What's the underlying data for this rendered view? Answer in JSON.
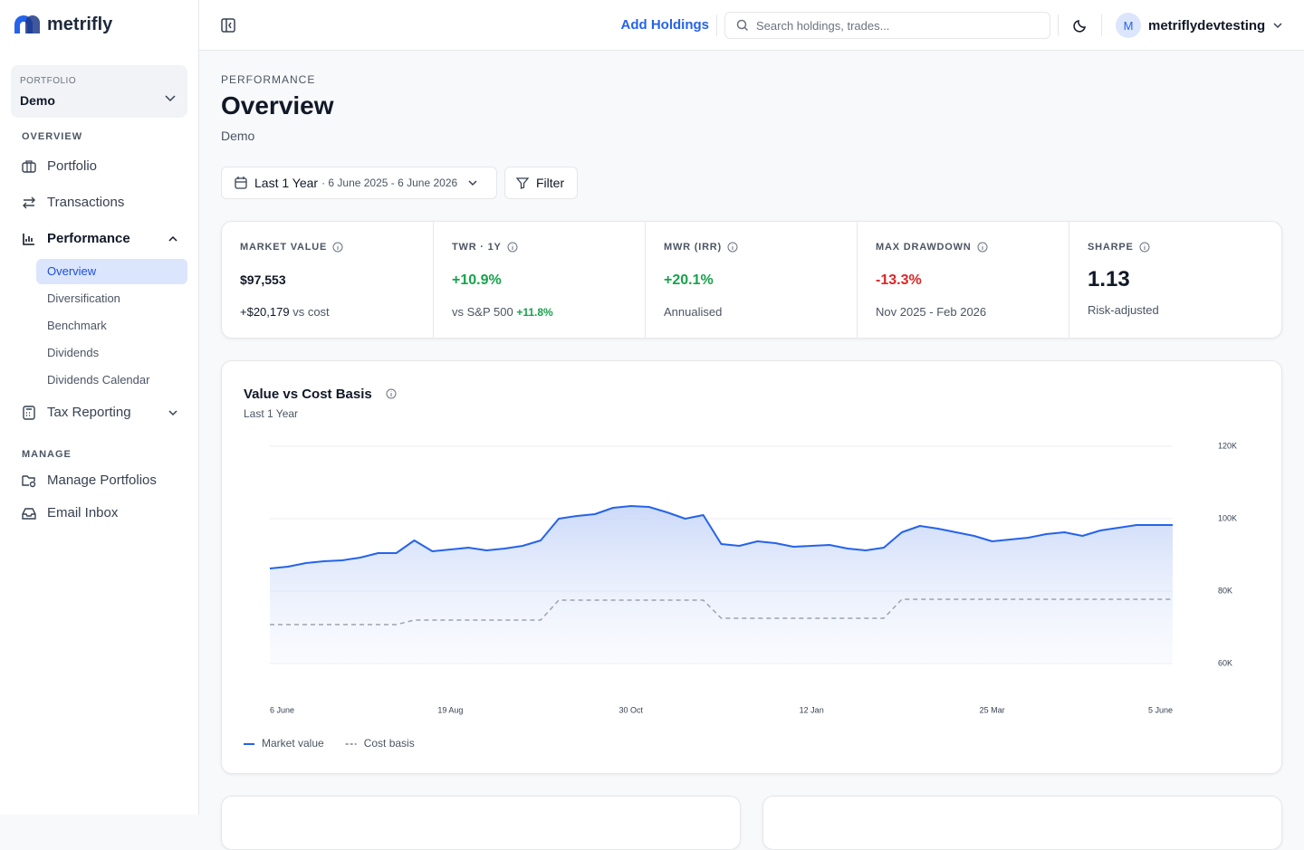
{
  "app": {
    "brand": "metrifly"
  },
  "sidebar": {
    "portfolio_label": "PORTFOLIO",
    "portfolio": "Demo",
    "overview_heading": "OVERVIEW",
    "items": [
      "Portfolio",
      "Transactions",
      "Performance",
      "Tax Reporting"
    ],
    "performance_children": [
      "Overview",
      "Diversification",
      "Benchmark",
      "Dividends",
      "Dividends Calendar"
    ],
    "manage_heading": "MANAGE",
    "manage_items": [
      "Manage Portfolios",
      "Email Inbox"
    ]
  },
  "topbar": {
    "add": "Add Holdings",
    "search": "Search holdings, trades...",
    "avatar": "M",
    "user": "metriflydevtesting"
  },
  "header": {
    "eyebrow": "PERFORMANCE",
    "title": "Overview",
    "subtitle": "Demo"
  },
  "filters": {
    "range": "Last 1 Year",
    "dates": "· 6 June 2025 - 6 June 2026",
    "filter": "Filter"
  },
  "kpis": [
    {
      "label": "MARKET VALUE",
      "value": "$97,553",
      "highlight": "+$20,179",
      "note": "vs cost"
    },
    {
      "label": "TWR · 1Y",
      "value": "+10.9%",
      "note": "vs S&P 500",
      "highlight": "+11.8%"
    },
    {
      "label": "MWR (IRR)",
      "value": "+20.1%",
      "note": "Annualised"
    },
    {
      "label": "MAX DRAWDOWN",
      "value": "-13.3%",
      "note": "Nov 2025 - Feb 2026"
    },
    {
      "label": "SHARPE",
      "value": "1.13",
      "note": "Risk-adjusted"
    }
  ],
  "chart_data": {
    "type": "line",
    "title": "Value vs Cost Basis",
    "subtitle": "Last 1 Year",
    "categories": [
      "6 June",
      null,
      null,
      null,
      null,
      null,
      null,
      null,
      null,
      null,
      "19 Aug",
      null,
      null,
      null,
      null,
      null,
      null,
      null,
      null,
      null,
      "30 Oct",
      null,
      null,
      null,
      null,
      null,
      null,
      null,
      null,
      null,
      "12 Jan",
      null,
      null,
      null,
      null,
      null,
      null,
      null,
      null,
      null,
      "25 Mar",
      null,
      null,
      null,
      null,
      null,
      null,
      null,
      null,
      null,
      "5 June"
    ],
    "series": [
      {
        "name": "Market value",
        "color": "#2563eb",
        "line_style": "solid",
        "area": true,
        "values": [
          86250,
          86750,
          87750,
          88250,
          88500,
          89250,
          90500,
          90500,
          94000,
          91000,
          91500,
          92000,
          91250,
          91750,
          92500,
          94000,
          100000,
          100750,
          101250,
          103000,
          103500,
          103250,
          101750,
          100000,
          101000,
          93000,
          92500,
          93750,
          93250,
          92250,
          92500,
          92750,
          91750,
          91250,
          92000,
          96250,
          98000,
          97250,
          96250,
          95250,
          93750,
          94250,
          94750,
          95750,
          96250,
          95250,
          96750,
          97500,
          98250,
          98250,
          98250
        ]
      },
      {
        "name": "Cost basis",
        "color": "#9ca3af",
        "line_style": "dashed",
        "area": false,
        "values": [
          70750,
          70750,
          70750,
          70750,
          70750,
          70750,
          70750,
          70750,
          72000,
          72000,
          72000,
          72000,
          72000,
          72000,
          72000,
          72000,
          77500,
          77500,
          77500,
          77500,
          77500,
          77500,
          77500,
          77500,
          77500,
          72500,
          72500,
          72500,
          72500,
          72500,
          72500,
          72500,
          72500,
          72500,
          72500,
          77750,
          77750,
          77750,
          77750,
          77750,
          77750,
          77750,
          77750,
          77750,
          77750,
          77750,
          77750,
          77750,
          77750,
          77750,
          77750
        ]
      }
    ],
    "ylim": [
      60000,
      120000
    ],
    "yticks": [
      {
        "value": 60000,
        "label": "60K"
      },
      {
        "value": 80000,
        "label": "80K"
      },
      {
        "value": 100000,
        "label": "100K"
      },
      {
        "value": 120000,
        "label": "120K"
      }
    ],
    "grid": true
  }
}
